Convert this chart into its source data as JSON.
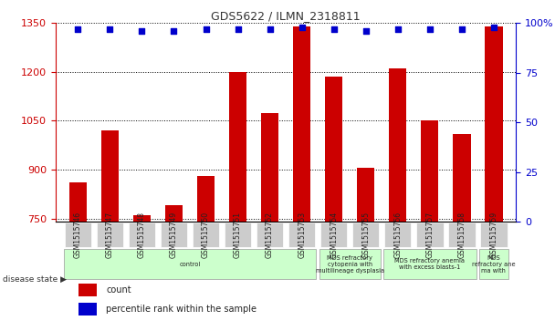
{
  "title": "GDS5622 / ILMN_2318811",
  "samples": [
    "GSM1515746",
    "GSM1515747",
    "GSM1515748",
    "GSM1515749",
    "GSM1515750",
    "GSM1515751",
    "GSM1515752",
    "GSM1515753",
    "GSM1515754",
    "GSM1515755",
    "GSM1515756",
    "GSM1515757",
    "GSM1515758",
    "GSM1515759"
  ],
  "counts": [
    860,
    1020,
    760,
    790,
    880,
    1200,
    1075,
    1340,
    1185,
    905,
    1210,
    1050,
    1010,
    1340
  ],
  "percentiles": [
    97,
    97,
    96,
    96,
    97,
    97,
    97,
    98,
    97,
    96,
    97,
    97,
    97,
    98
  ],
  "ylim_left": [
    740,
    1350
  ],
  "ylim_right": [
    0,
    100
  ],
  "yticks_left": [
    750,
    900,
    1050,
    1200,
    1350
  ],
  "yticks_right": [
    0,
    25,
    50,
    75,
    100
  ],
  "bar_color": "#cc0000",
  "dot_color": "#0000cc",
  "grid_color": "#000000",
  "bg_color": "#ffffff",
  "axis_color_left": "#cc0000",
  "axis_color_right": "#0000cc",
  "disease_groups": [
    {
      "label": "control",
      "start": 0,
      "end": 8
    },
    {
      "label": "MDS refractory\ncytopenia with\nmultilineage dysplasia",
      "start": 8,
      "end": 10
    },
    {
      "label": "MDS refractory anemia\nwith excess blasts-1",
      "start": 10,
      "end": 13
    },
    {
      "label": "MDS\nrefractory ane\nma with",
      "start": 13,
      "end": 14
    }
  ],
  "disease_group_color": "#ccffcc",
  "disease_state_label": "disease state",
  "legend_count_label": "count",
  "legend_percentile_label": "percentile rank within the sample",
  "tick_bg_color": "#cccccc",
  "n_samples": 14
}
